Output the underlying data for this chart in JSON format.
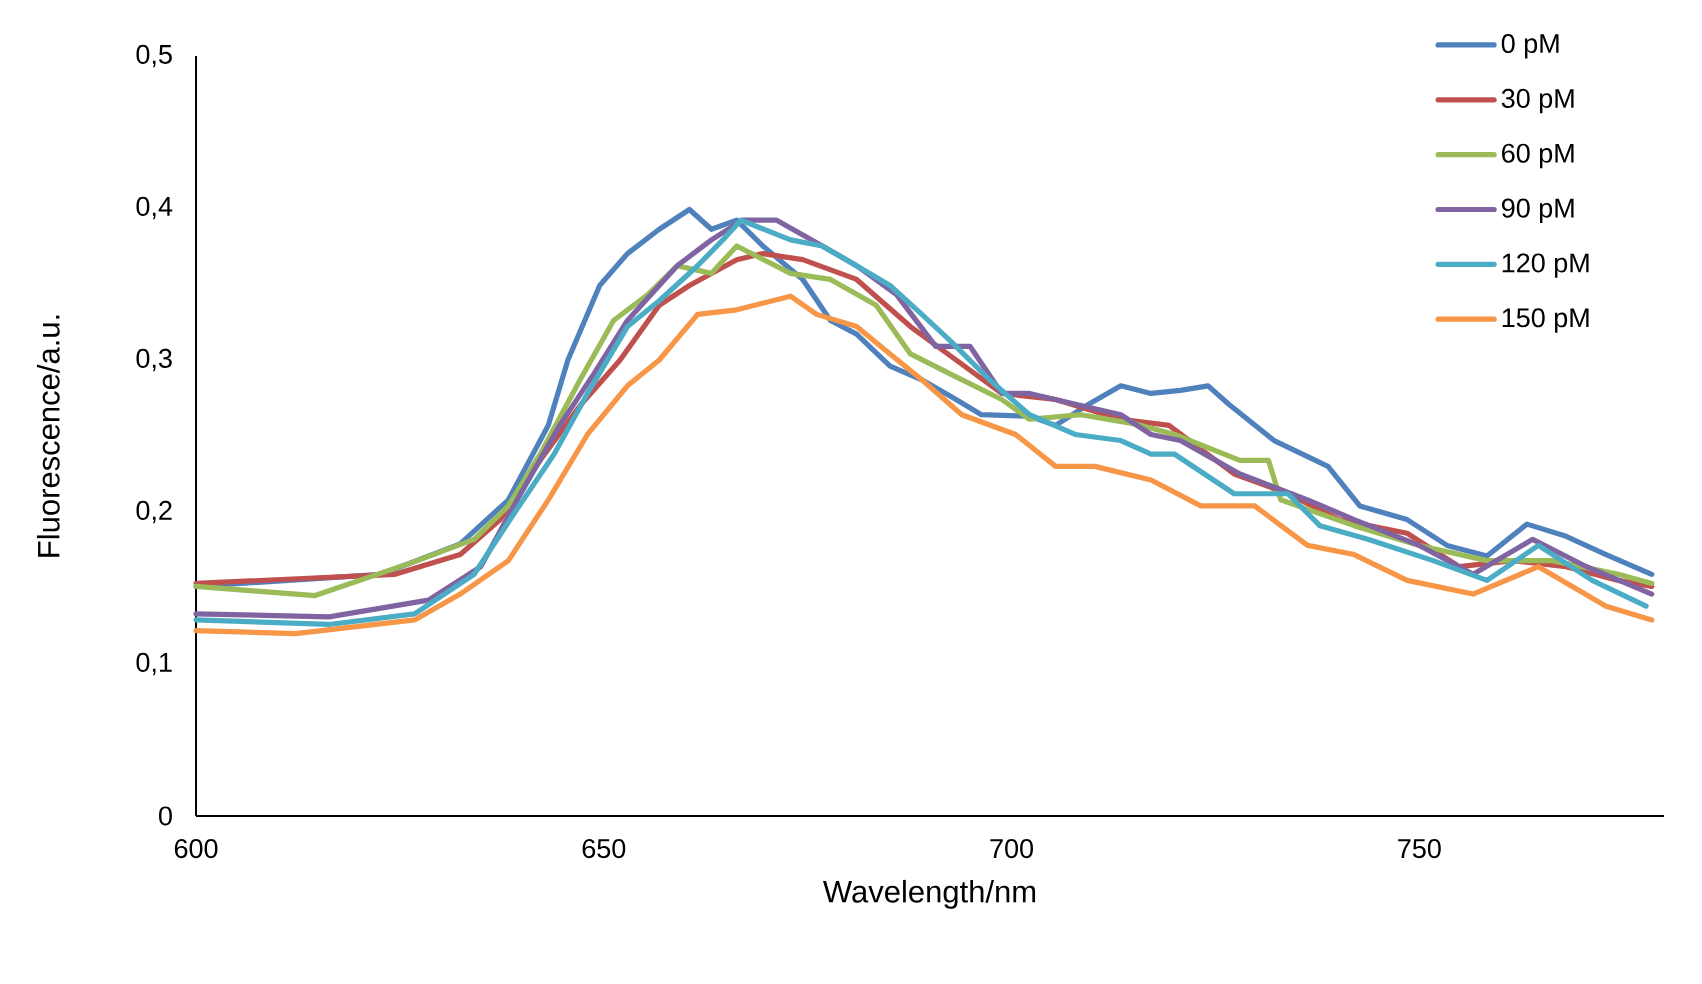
{
  "chart_data": {
    "type": "line",
    "xlabel": "Wavelength/nm",
    "ylabel": "Fluorescence/a.u.",
    "xlim": [
      600,
      780
    ],
    "xticks": [
      600,
      650,
      700,
      750
    ],
    "ylim": [
      0,
      0.5
    ],
    "yticks": [
      0,
      {
        "value": 0.1,
        "label": "0,1"
      },
      {
        "value": 0.2,
        "label": "0,2"
      },
      {
        "value": 0.3,
        "label": "0,3"
      },
      {
        "value": 0.4,
        "label": "0,4"
      },
      {
        "value": 0.5,
        "label": "0,5"
      }
    ],
    "legend": "top right",
    "marker": "none",
    "line_style": "solid",
    "series": [
      {
        "name": "0 pM",
        "color": "#4f81bd",
        "x": [
          600,
          622.7,
          632.4,
          638.3,
          643.2,
          645.6,
          649.5,
          652.9,
          656.8,
          660.5,
          663.2,
          666.3,
          669.5,
          674.4,
          677.8,
          681.0,
          685.1,
          689.0,
          693.2,
          696.3,
          702.2,
          705.4,
          709.5,
          713.4,
          717.1,
          720.7,
          724.1,
          726.6,
          732.2,
          738.8,
          742.7,
          748.5,
          753.4,
          758.3,
          763.2,
          768.0,
          772.9,
          778.5
        ],
        "values": [
          0.151,
          0.159,
          0.179,
          0.208,
          0.257,
          0.3,
          0.349,
          0.37,
          0.386,
          0.399,
          0.386,
          0.392,
          0.375,
          0.353,
          0.326,
          0.317,
          0.296,
          0.287,
          0.274,
          0.264,
          0.263,
          0.257,
          0.271,
          0.283,
          0.278,
          0.28,
          0.283,
          0.271,
          0.247,
          0.23,
          0.204,
          0.195,
          0.178,
          0.171,
          0.192,
          0.184,
          0.172,
          0.159
        ]
      },
      {
        "name": "30 pM",
        "color": "#c0504d",
        "x": [
          600,
          624.4,
          632.4,
          637.3,
          642.2,
          647.1,
          652.0,
          656.8,
          660.5,
          666.3,
          669.5,
          674.4,
          681.0,
          687.6,
          693.2,
          698.8,
          705.4,
          713.4,
          719.3,
          727.3,
          733.9,
          740.2,
          748.5,
          754.9,
          761.5,
          768.0,
          774.4,
          778.5
        ],
        "values": [
          0.153,
          0.159,
          0.172,
          0.195,
          0.234,
          0.27,
          0.3,
          0.336,
          0.349,
          0.366,
          0.37,
          0.366,
          0.353,
          0.322,
          0.3,
          0.278,
          0.274,
          0.261,
          0.257,
          0.225,
          0.212,
          0.195,
          0.186,
          0.164,
          0.168,
          0.164,
          0.155,
          0.151
        ]
      },
      {
        "name": "60 pM",
        "color": "#9bbb59",
        "x": [
          600,
          614.6,
          626.1,
          634.1,
          638.3,
          642.2,
          647.1,
          651.2,
          655.4,
          659.0,
          663.2,
          666.3,
          672.9,
          677.8,
          683.4,
          687.6,
          692.4,
          698.8,
          702.2,
          708.5,
          715.1,
          720.0,
          728.0,
          731.5,
          733.0,
          742.0,
          750.0,
          758.3,
          766.3,
          774.4,
          778.5
        ],
        "values": [
          0.151,
          0.145,
          0.166,
          0.182,
          0.204,
          0.238,
          0.287,
          0.326,
          0.343,
          0.362,
          0.357,
          0.375,
          0.357,
          0.353,
          0.336,
          0.304,
          0.291,
          0.274,
          0.261,
          0.264,
          0.258,
          0.251,
          0.234,
          0.234,
          0.208,
          0.191,
          0.178,
          0.168,
          0.168,
          0.159,
          0.153
        ]
      },
      {
        "name": "90 pM",
        "color": "#8064a2",
        "x": [
          600,
          616.3,
          628.5,
          634.9,
          639.8,
          644.6,
          648.8,
          652.9,
          656.8,
          659.0,
          663.2,
          667.0,
          671.2,
          676.8,
          681.0,
          685.9,
          690.7,
          694.9,
          698.8,
          702.2,
          708.5,
          713.4,
          717.1,
          720.7,
          728.0,
          736.3,
          742.0,
          750.0,
          756.6,
          763.9,
          770.5,
          778.5
        ],
        "values": [
          0.133,
          0.131,
          0.142,
          0.164,
          0.212,
          0.257,
          0.291,
          0.326,
          0.349,
          0.362,
          0.379,
          0.392,
          0.392,
          0.375,
          0.362,
          0.343,
          0.309,
          0.309,
          0.278,
          0.278,
          0.27,
          0.264,
          0.251,
          0.247,
          0.225,
          0.208,
          0.195,
          0.178,
          0.159,
          0.182,
          0.164,
          0.146
        ]
      },
      {
        "name": "120 pM",
        "color": "#4bacc6",
        "x": [
          600,
          616.3,
          626.8,
          634.1,
          639.0,
          643.9,
          648.0,
          652.9,
          656.8,
          661.5,
          664.6,
          666.8,
          672.9,
          676.8,
          681.0,
          685.1,
          689.0,
          692.4,
          697.3,
          702.2,
          707.8,
          713.4,
          717.1,
          720.0,
          727.3,
          733.9,
          737.8,
          743.7,
          751.7,
          758.3,
          764.6,
          771.2,
          777.8
        ],
        "values": [
          0.129,
          0.126,
          0.133,
          0.159,
          0.199,
          0.238,
          0.278,
          0.322,
          0.339,
          0.362,
          0.379,
          0.392,
          0.379,
          0.375,
          0.362,
          0.349,
          0.33,
          0.313,
          0.287,
          0.264,
          0.251,
          0.247,
          0.238,
          0.238,
          0.212,
          0.212,
          0.191,
          0.182,
          0.168,
          0.155,
          0.178,
          0.155,
          0.138
        ]
      },
      {
        "name": "150 pM",
        "color": "#f79646",
        "x": [
          600,
          612.2,
          626.8,
          632.4,
          638.3,
          643.2,
          648.0,
          652.9,
          656.8,
          661.5,
          666.3,
          672.9,
          676.1,
          681.0,
          685.1,
          689.0,
          693.9,
          700.5,
          705.4,
          710.2,
          717.1,
          723.2,
          729.8,
          736.3,
          742.0,
          748.5,
          756.6,
          764.6,
          772.9,
          778.5
        ],
        "values": [
          0.122,
          0.12,
          0.129,
          0.146,
          0.168,
          0.208,
          0.251,
          0.283,
          0.3,
          0.33,
          0.333,
          0.342,
          0.33,
          0.322,
          0.304,
          0.287,
          0.264,
          0.251,
          0.23,
          0.23,
          0.221,
          0.204,
          0.204,
          0.178,
          0.172,
          0.155,
          0.146,
          0.164,
          0.138,
          0.129
        ]
      }
    ]
  }
}
